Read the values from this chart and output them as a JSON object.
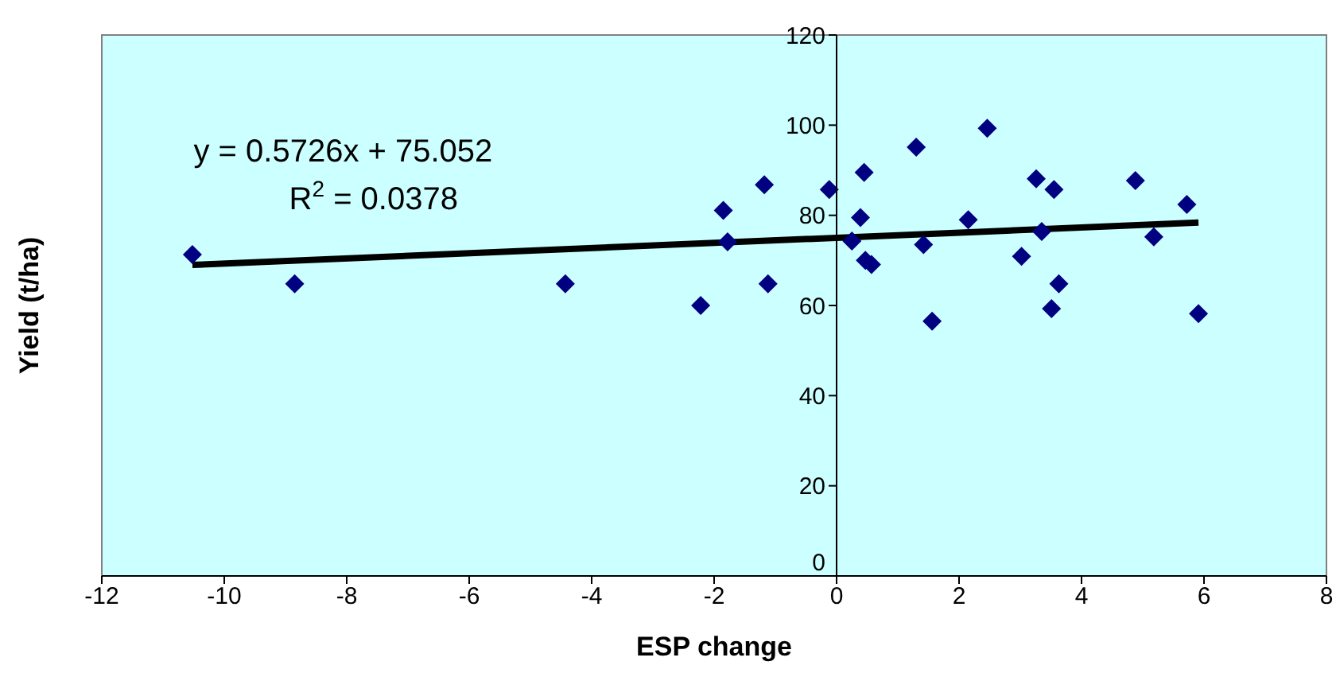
{
  "chart_data": {
    "type": "scatter",
    "xlabel": "ESP change",
    "ylabel": "Yield (t/ha)",
    "annotations": [
      "y = 0.5726x + 75.052",
      "R$^{2}$ = 0.0378"
    ],
    "xlim": [
      -12,
      8
    ],
    "xticks": [
      -12,
      -10,
      -8,
      -6,
      -4,
      -2,
      0,
      2,
      4,
      6,
      8
    ],
    "ylim": [
      0,
      120
    ],
    "yticks": [
      0,
      20,
      40,
      60,
      80,
      100,
      120
    ],
    "series": [
      {
        "type": "scatter",
        "marker": "diamond",
        "color": "#000080",
        "x": [
          -10.52,
          -8.85,
          -4.43,
          -2.22,
          -1.85,
          -1.78,
          -1.18,
          -1.12,
          -0.12,
          0.25,
          0.39,
          0.45,
          0.47,
          0.57,
          1.3,
          1.42,
          1.56,
          2.15,
          2.46,
          3.02,
          3.26,
          3.35,
          3.51,
          3.55,
          3.63,
          4.88,
          5.18,
          5.72,
          5.91
        ],
        "values": [
          71.3,
          64.8,
          64.8,
          60,
          81.1,
          74.1,
          86.8,
          64.8,
          85.7,
          74.3,
          79.5,
          89.5,
          70,
          69.1,
          95.1,
          73.5,
          56.5,
          79,
          99.3,
          70.9,
          88.1,
          76.4,
          59.3,
          85.7,
          64.8,
          87.7,
          75.2,
          82.4,
          58.2
        ]
      },
      {
        "type": "line",
        "color": "#000000",
        "x": [
          -10.52,
          5.91
        ],
        "values": [
          69.0,
          78.4
        ]
      }
    ]
  }
}
